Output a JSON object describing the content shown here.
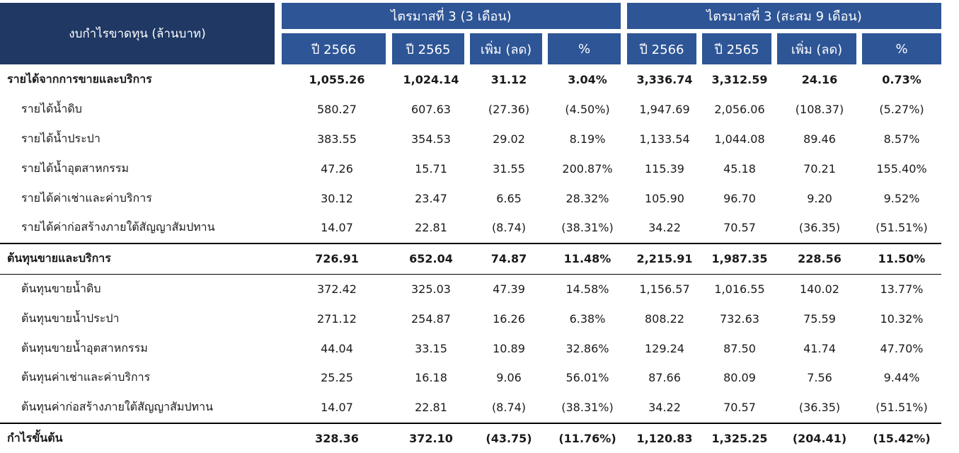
{
  "header": {
    "title": "งบกำไรขาดทุน (ล้านบาท)",
    "group_q3": "ไตรมาสที่ 3 (3 เดือน)",
    "group_9m": "ไตรมาสที่ 3 (สะสม 9 เดือน)",
    "columns": [
      "ปี 2566",
      "ปี 2565",
      "เพิ่ม (ลด)",
      "%",
      "ปี 2566",
      "ปี 2565",
      "เพิ่ม (ลด)",
      "%"
    ]
  },
  "rows": [
    {
      "label": "รายได้จากการขายและบริการ",
      "values": [
        "1,055.26",
        "1,024.14",
        "31.12",
        "3.04%",
        "3,336.74",
        "3,312.59",
        "24.16",
        "0.73%"
      ]
    },
    {
      "label": "รายได้น้ำดิบ",
      "values": [
        "580.27",
        "607.63",
        "(27.36)",
        "(4.50%)",
        "1,947.69",
        "2,056.06",
        "(108.37)",
        "(5.27%)"
      ]
    },
    {
      "label": "รายได้น้ำประปา",
      "values": [
        "383.55",
        "354.53",
        "29.02",
        "8.19%",
        "1,133.54",
        "1,044.08",
        "89.46",
        "8.57%"
      ]
    },
    {
      "label": "รายได้น้ำอุตสาหกรรม",
      "values": [
        "47.26",
        "15.71",
        "31.55",
        "200.87%",
        "115.39",
        "45.18",
        "70.21",
        "155.40%"
      ]
    },
    {
      "label": "รายได้ค่าเช่าและค่าบริการ",
      "values": [
        "30.12",
        "23.47",
        "6.65",
        "28.32%",
        "105.90",
        "96.70",
        "9.20",
        "9.52%"
      ]
    },
    {
      "label": "รายได้ค่าก่อสร้างภายใต้สัญญาสัมปทาน",
      "values": [
        "14.07",
        "22.81",
        "(8.74)",
        "(38.31%)",
        "34.22",
        "70.57",
        "(36.35)",
        "(51.51%)"
      ]
    },
    {
      "label": "ต้นทุนขายและบริการ",
      "values": [
        "726.91",
        "652.04",
        "74.87",
        "11.48%",
        "2,215.91",
        "1,987.35",
        "228.56",
        "11.50%"
      ]
    },
    {
      "label": "ต้นทุนขายน้ำดิบ",
      "values": [
        "372.42",
        "325.03",
        "47.39",
        "14.58%",
        "1,156.57",
        "1,016.55",
        "140.02",
        "13.77%"
      ]
    },
    {
      "label": "ต้นทุนขายน้ำประปา",
      "values": [
        "271.12",
        "254.87",
        "16.26",
        "6.38%",
        "808.22",
        "732.63",
        "75.59",
        "10.32%"
      ]
    },
    {
      "label": "ต้นทุนขายน้ำอุตสาหกรรม",
      "values": [
        "44.04",
        "33.15",
        "10.89",
        "32.86%",
        "129.24",
        "87.50",
        "41.74",
        "47.70%"
      ]
    },
    {
      "label": "ต้นทุนค่าเช่าและค่าบริการ",
      "values": [
        "25.25",
        "16.18",
        "9.06",
        "56.01%",
        "87.66",
        "80.09",
        "7.56",
        "9.44%"
      ]
    },
    {
      "label": "ต้นทุนค่าก่อสร้างภายใต้สัญญาสัมปทาน",
      "values": [
        "14.07",
        "22.81",
        "(8.74)",
        "(38.31%)",
        "34.22",
        "70.57",
        "(36.35)",
        "(51.51%)"
      ]
    },
    {
      "label": "กำไรขั้นต้น",
      "values": [
        "328.36",
        "372.10",
        "(43.75)",
        "(11.76%)",
        "1,120.83",
        "1,325.25",
        "(204.41)",
        "(15.42%)"
      ]
    }
  ],
  "colors": {
    "title_bg": "#1f3864",
    "header_bg": "#2e5596",
    "header_text": "#ffffff",
    "rule": "#000000"
  }
}
